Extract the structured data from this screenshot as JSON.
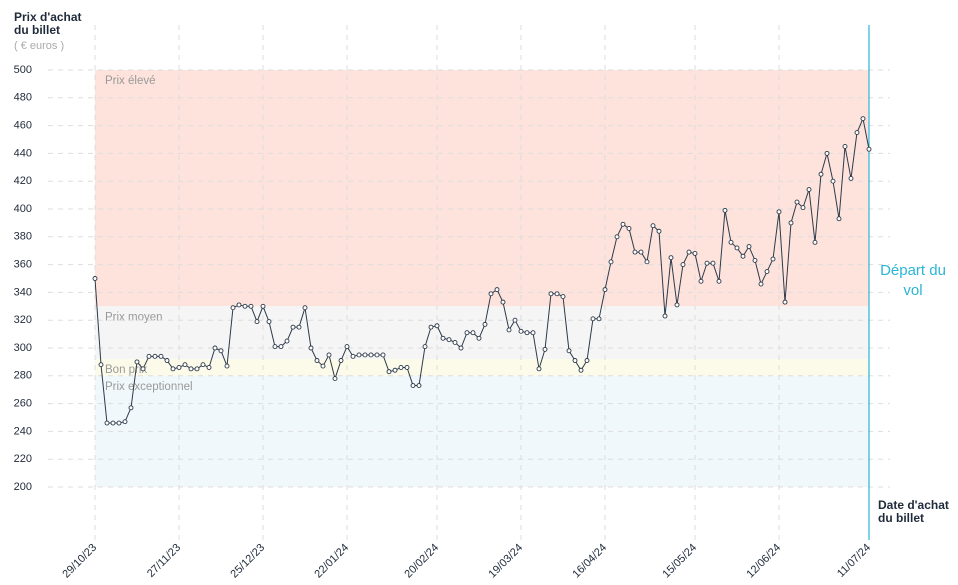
{
  "chart_data": {
    "type": "line",
    "y_title": "Prix d'achat du billet",
    "y_unit": "( € euros )",
    "x_title": "Date d'achat du billet",
    "annotation": "Départ du vol",
    "annotation_color": "#2bb5d6",
    "color": "#2d3a4a",
    "grid": true,
    "ylim": [
      200,
      500
    ],
    "yticks": [
      200,
      220,
      240,
      260,
      280,
      300,
      320,
      340,
      360,
      380,
      400,
      420,
      440,
      460,
      480,
      500
    ],
    "bands": [
      {
        "label": "Prix élevé",
        "from": 330,
        "to": 500,
        "color": "#fde3dc"
      },
      {
        "label": "Prix moyen",
        "from": 292,
        "to": 330,
        "color": "#f5f5f5"
      },
      {
        "label": "Bon prix",
        "from": 280,
        "to": 292,
        "color": "#fcfbe9"
      },
      {
        "label": "Prix exceptionnel",
        "from": 200,
        "to": 280,
        "color": "#f0f8fb"
      }
    ],
    "categories": [
      "29/10/23",
      null,
      null,
      null,
      null,
      null,
      null,
      null,
      null,
      null,
      null,
      null,
      null,
      null,
      "27/11/23",
      null,
      null,
      null,
      null,
      null,
      null,
      null,
      null,
      null,
      null,
      null,
      null,
      null,
      "25/12/23",
      null,
      null,
      null,
      null,
      null,
      null,
      null,
      null,
      null,
      null,
      null,
      null,
      null,
      "22/01/24",
      null,
      null,
      null,
      null,
      null,
      null,
      null,
      null,
      null,
      null,
      null,
      null,
      null,
      null,
      "20/02/24",
      null,
      null,
      null,
      null,
      null,
      null,
      null,
      null,
      null,
      null,
      null,
      null,
      null,
      "19/03/24",
      null,
      null,
      null,
      null,
      null,
      null,
      null,
      null,
      null,
      null,
      null,
      null,
      null,
      "16/04/24",
      null,
      null,
      null,
      null,
      null,
      null,
      null,
      null,
      null,
      null,
      null,
      null,
      null,
      null,
      "15/05/24",
      null,
      null,
      null,
      null,
      null,
      null,
      null,
      null,
      null,
      null,
      null,
      null,
      null,
      "12/06/24",
      null,
      null,
      null,
      null,
      null,
      null,
      null,
      null,
      null,
      null,
      null,
      null,
      null,
      null,
      "11/07/24"
    ],
    "values": [
      350,
      288,
      246,
      246,
      246,
      247,
      257,
      290,
      285,
      294,
      294,
      294,
      291,
      285,
      286,
      288,
      285,
      285,
      288,
      286,
      300,
      298,
      287,
      329,
      331,
      330,
      330,
      319,
      330,
      319,
      301,
      301,
      305,
      315,
      315,
      329,
      300,
      291,
      287,
      295,
      278,
      291,
      301,
      294,
      295,
      295,
      295,
      295,
      295,
      283,
      284,
      286,
      286,
      273,
      273,
      301,
      315,
      316,
      307,
      306,
      304,
      300,
      311,
      311,
      307,
      317,
      339,
      342,
      333,
      313,
      320,
      312,
      311,
      311,
      285,
      299,
      339,
      339,
      337,
      298,
      291,
      284,
      291,
      321,
      321,
      342,
      362,
      380,
      389,
      386,
      369,
      369,
      362,
      388,
      384,
      323,
      365,
      331,
      360,
      369,
      368,
      348,
      361,
      361,
      348,
      399,
      376,
      372,
      366,
      373,
      363,
      346,
      355,
      364,
      398,
      333,
      390,
      405,
      401,
      414,
      376,
      425,
      440,
      420,
      393,
      445,
      422,
      455,
      465,
      443
    ]
  }
}
